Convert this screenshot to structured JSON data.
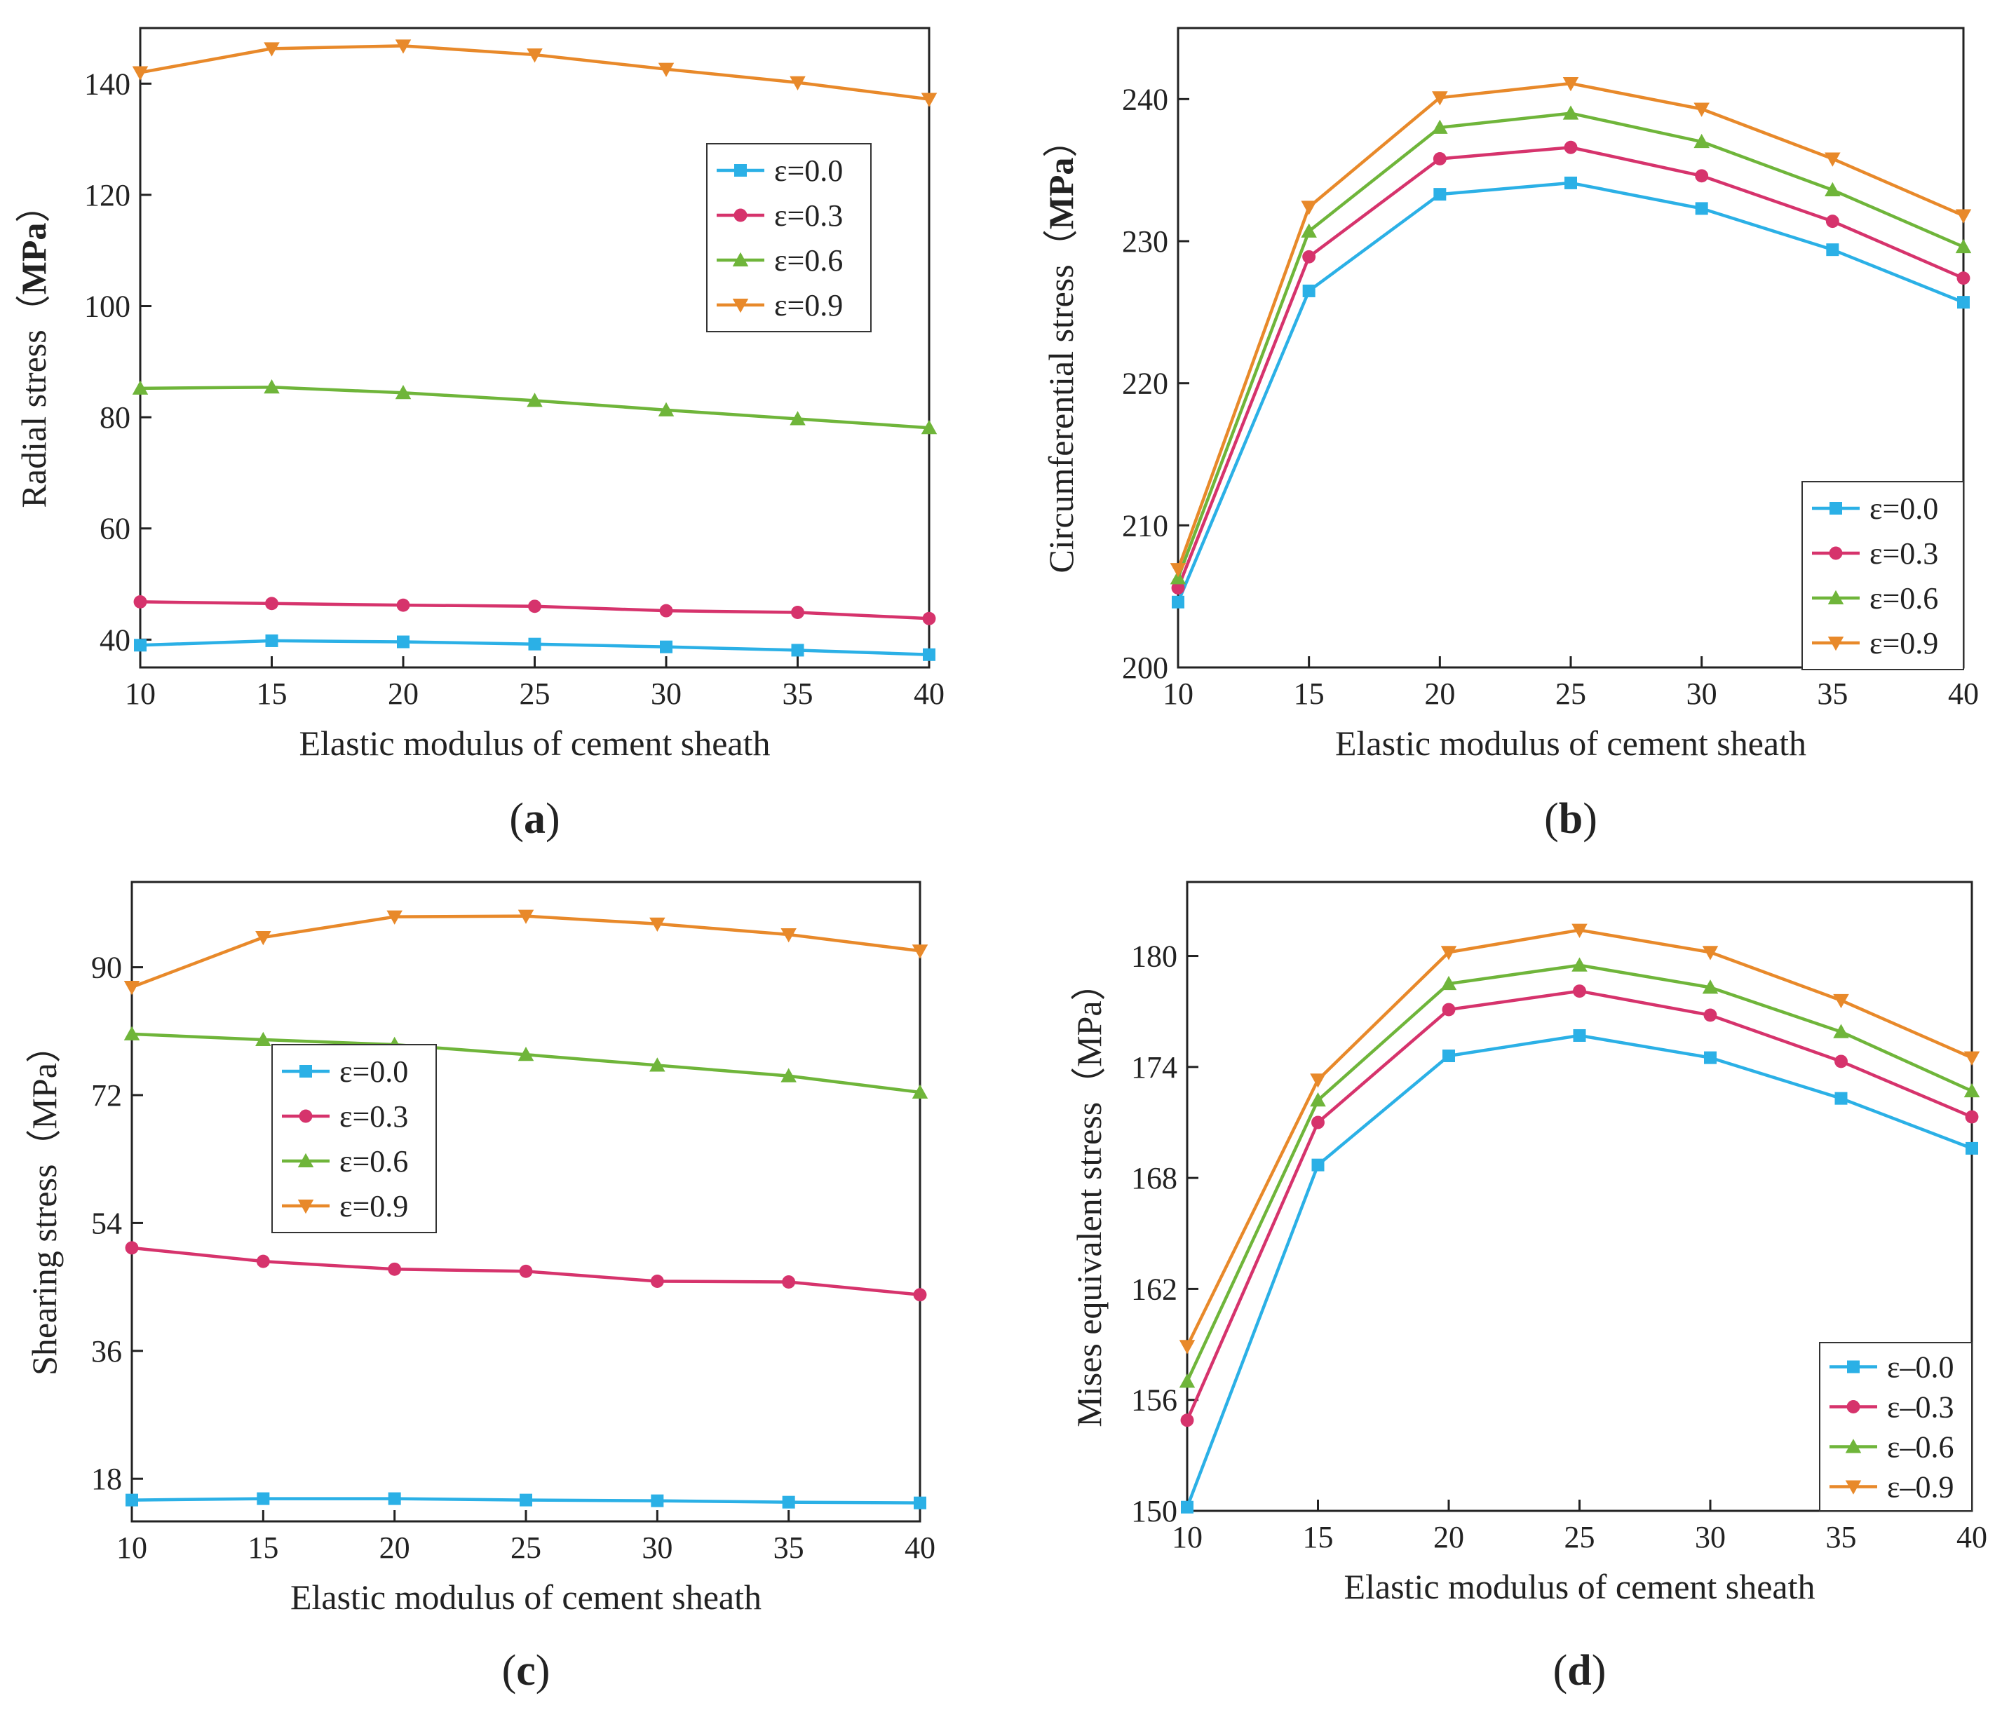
{
  "colors": {
    "e00": "#2bb0e6",
    "e03": "#d6336c",
    "e06": "#6fb53a",
    "e09": "#e8892a"
  },
  "chart_data": [
    {
      "type": "line",
      "panel_label": "(a)",
      "panel_letter": "a",
      "xlabel": "Elastic modulus of cement sheath",
      "ylabel": "Radial stress（MPa）",
      "ylabel_main": "Radial stress（",
      "ylabel_unit": "MPa",
      "ylabel_close": "）",
      "x": [
        10,
        15,
        20,
        25,
        30,
        35,
        40
      ],
      "xlim": [
        10,
        40
      ],
      "ylim": [
        35,
        150
      ],
      "xticks": [
        "10",
        "15",
        "20",
        "25",
        "30",
        "35",
        "40"
      ],
      "yticks": [
        40,
        60,
        80,
        100,
        120,
        140
      ],
      "ytick_labels": [
        "40",
        "60",
        "80",
        "100",
        "120",
        "140"
      ],
      "legend_position": "top-right",
      "series": [
        {
          "name": "ε=0.0",
          "marker": "square",
          "color": "#2bb0e6",
          "values": [
            39.0,
            39.8,
            39.6,
            39.2,
            38.7,
            38.1,
            37.3
          ]
        },
        {
          "name": "ε=0.3",
          "marker": "circle",
          "color": "#d6336c",
          "values": [
            46.8,
            46.5,
            46.2,
            46.0,
            45.2,
            44.9,
            43.8
          ]
        },
        {
          "name": "ε=0.6",
          "marker": "triangle-up",
          "color": "#6fb53a",
          "values": [
            85.2,
            85.4,
            84.4,
            83.0,
            81.3,
            79.7,
            78.1
          ]
        },
        {
          "name": "ε=0.9",
          "marker": "triangle-down",
          "color": "#e8892a",
          "values": [
            142.0,
            146.3,
            146.8,
            145.2,
            142.6,
            140.2,
            137.2
          ]
        }
      ]
    },
    {
      "type": "line",
      "panel_label": "(b)",
      "panel_letter": "b",
      "xlabel": "Elastic modulus of cement sheath",
      "ylabel": "Circumferential stress（MPa）",
      "ylabel_main": "Circumferential stress（",
      "ylabel_unit": "MPa",
      "ylabel_close": "）",
      "x": [
        10,
        15,
        20,
        25,
        30,
        35,
        40
      ],
      "xlim": [
        10,
        40
      ],
      "ylim": [
        200,
        245
      ],
      "xticks": [
        "10",
        "15",
        "20",
        "25",
        "30",
        "35",
        "40"
      ],
      "yticks": [
        200,
        210,
        220,
        230,
        240
      ],
      "ytick_labels": [
        "200",
        "210",
        "220",
        "230",
        "240"
      ],
      "legend_position": "bottom-right",
      "series": [
        {
          "name": "ε=0.0",
          "marker": "square",
          "color": "#2bb0e6",
          "values": [
            204.6,
            226.5,
            233.3,
            234.1,
            232.3,
            229.4,
            225.7
          ]
        },
        {
          "name": "ε=0.3",
          "marker": "circle",
          "color": "#d6336c",
          "values": [
            205.6,
            228.9,
            235.8,
            236.6,
            234.6,
            231.4,
            227.4
          ]
        },
        {
          "name": "ε=0.6",
          "marker": "triangle-up",
          "color": "#6fb53a",
          "values": [
            206.3,
            230.7,
            238.0,
            239.0,
            237.0,
            233.6,
            229.6
          ]
        },
        {
          "name": "ε=0.9",
          "marker": "triangle-down",
          "color": "#e8892a",
          "values": [
            206.9,
            232.4,
            240.1,
            241.1,
            239.3,
            235.8,
            231.8
          ]
        }
      ]
    },
    {
      "type": "line",
      "panel_label": "(c)",
      "panel_letter": "c",
      "xlabel": "Elastic modulus of cement sheath",
      "ylabel": "Shearing stress（MPa）",
      "ylabel_main": "Shearing stress（",
      "ylabel_unit": "MPa",
      "ylabel_close": "）",
      "x": [
        10,
        15,
        20,
        25,
        30,
        35,
        40
      ],
      "xlim": [
        10,
        40
      ],
      "ylim": [
        12,
        102
      ],
      "xticks": [
        "10",
        "15",
        "20",
        "25",
        "30",
        "35",
        "40"
      ],
      "yticks": [
        18,
        36,
        54,
        72,
        90
      ],
      "ytick_labels": [
        "18",
        "36",
        "54",
        "72",
        "90"
      ],
      "legend_position": "center-left",
      "series": [
        {
          "name": "ε=0.0",
          "marker": "square",
          "color": "#2bb0e6",
          "values": [
            15.0,
            15.2,
            15.2,
            15.0,
            14.9,
            14.7,
            14.6
          ]
        },
        {
          "name": "ε=0.3",
          "marker": "circle",
          "color": "#d6336c",
          "values": [
            50.5,
            48.6,
            47.5,
            47.2,
            45.8,
            45.7,
            43.9
          ]
        },
        {
          "name": "ε=0.6",
          "marker": "triangle-up",
          "color": "#6fb53a",
          "values": [
            80.6,
            79.8,
            79.1,
            77.7,
            76.2,
            74.7,
            72.4
          ]
        },
        {
          "name": "ε=0.9",
          "marker": "triangle-down",
          "color": "#e8892a",
          "values": [
            87.2,
            94.2,
            97.1,
            97.2,
            96.1,
            94.6,
            92.3
          ]
        }
      ]
    },
    {
      "type": "line",
      "panel_label": "(d)",
      "panel_letter": "d",
      "xlabel": "Elastic modulus of cement sheath",
      "ylabel": "Mises equivalent stress（MPa）",
      "ylabel_main": "Mises equivalent stress（",
      "ylabel_unit": "MPa",
      "ylabel_close": "）",
      "x": [
        10,
        15,
        20,
        25,
        30,
        35,
        40
      ],
      "xlim": [
        10,
        40
      ],
      "ylim": [
        150,
        184
      ],
      "xticks": [
        "10",
        "15",
        "20",
        "25",
        "30",
        "35",
        "40"
      ],
      "yticks": [
        150,
        156,
        162,
        168,
        174,
        180
      ],
      "ytick_labels": [
        "150",
        "156",
        "162",
        "168",
        "174",
        "180"
      ],
      "legend_position": "bottom-right",
      "series": [
        {
          "name": "ε–0.0",
          "marker": "square",
          "color": "#2bb0e6",
          "values": [
            150.2,
            168.7,
            174.6,
            175.7,
            174.5,
            172.3,
            169.6
          ]
        },
        {
          "name": "ε–0.3",
          "marker": "circle",
          "color": "#d6336c",
          "values": [
            154.9,
            171.0,
            177.1,
            178.1,
            176.8,
            174.3,
            171.3
          ]
        },
        {
          "name": "ε–0.6",
          "marker": "triangle-up",
          "color": "#6fb53a",
          "values": [
            157.0,
            172.2,
            178.5,
            179.5,
            178.3,
            175.9,
            172.7
          ]
        },
        {
          "name": "ε–0.9",
          "marker": "triangle-down",
          "color": "#e8892a",
          "values": [
            158.9,
            173.3,
            180.2,
            181.4,
            180.2,
            177.6,
            174.5
          ]
        }
      ]
    }
  ]
}
